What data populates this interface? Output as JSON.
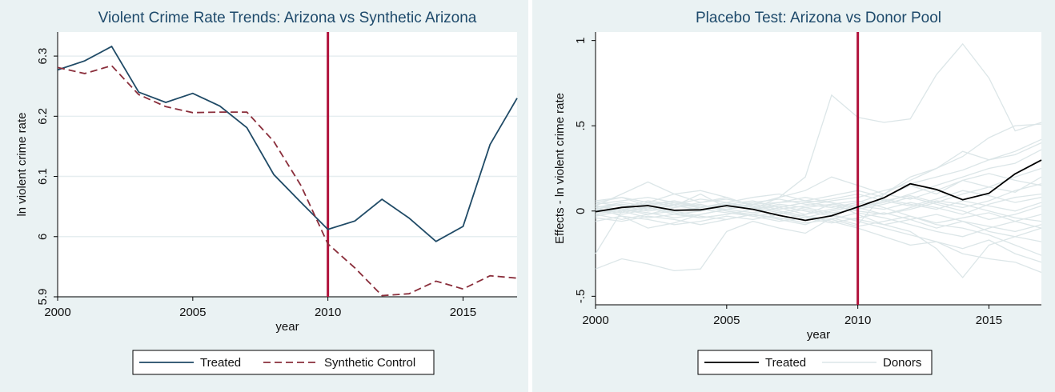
{
  "chart_data": [
    {
      "type": "line",
      "title": "Violent Crime Rate Trends: Arizona vs Synthetic Arizona",
      "xlabel": "year",
      "ylabel": "ln violent crime rate",
      "xlim": [
        2000,
        2017
      ],
      "ylim": [
        5.9,
        6.34
      ],
      "x_ticks": [
        "2000",
        "2005",
        "2010",
        "2015"
      ],
      "y_ticks": [
        "5.9",
        "6",
        "6.1",
        "6.2",
        "6.3"
      ],
      "grid": true,
      "legend_position": "bottom",
      "vline": {
        "x": 2010,
        "color": "#b0123b"
      },
      "x": [
        2000,
        2001,
        2002,
        2003,
        2004,
        2005,
        2006,
        2007,
        2008,
        2009,
        2010,
        2011,
        2012,
        2013,
        2014,
        2015,
        2016,
        2017
      ],
      "series": [
        {
          "name": "Treated",
          "color": "#1f4a66",
          "dash": "solid",
          "values": [
            6.277,
            6.292,
            6.316,
            6.24,
            6.223,
            6.238,
            6.217,
            6.181,
            6.103,
            6.057,
            6.012,
            6.026,
            6.062,
            6.031,
            5.992,
            6.017,
            6.153,
            6.23
          ]
        },
        {
          "name": "Synthetic Control",
          "color": "#8a2e3b",
          "dash": "dashed",
          "values": [
            6.281,
            6.271,
            6.284,
            6.236,
            6.216,
            6.206,
            6.207,
            6.207,
            6.158,
            6.085,
            5.988,
            5.948,
            5.902,
            5.905,
            5.926,
            5.913,
            5.935,
            5.931
          ]
        }
      ]
    },
    {
      "type": "line",
      "title": "Placebo Test: Arizona vs Donor Pool",
      "xlabel": "year",
      "ylabel": "Effects - ln violent crime rate",
      "xlim": [
        2000,
        2017
      ],
      "ylim": [
        -0.55,
        1.05
      ],
      "x_ticks": [
        "2000",
        "2005",
        "2010",
        "2015"
      ],
      "y_ticks": [
        "-.5",
        "0",
        ".5",
        "1"
      ],
      "grid": false,
      "legend_position": "bottom",
      "vline": {
        "x": 2010,
        "color": "#b0123b"
      },
      "x": [
        2000,
        2001,
        2002,
        2003,
        2004,
        2005,
        2006,
        2007,
        2008,
        2009,
        2010,
        2011,
        2012,
        2013,
        2014,
        2015,
        2016,
        2017
      ],
      "series": [
        {
          "name": "Treated",
          "color": "#000000",
          "values": [
            -0.004,
            0.021,
            0.032,
            0.004,
            0.007,
            0.032,
            0.01,
            -0.026,
            -0.055,
            -0.028,
            0.024,
            0.078,
            0.16,
            0.126,
            0.066,
            0.104,
            0.218,
            0.299
          ]
        },
        {
          "name": "Donors",
          "color": "#dce6e8",
          "values_list": [
            [
              0.05,
              0.08,
              0.03,
              0.06,
              0.02,
              0.04,
              0.01,
              0.08,
              0.2,
              0.68,
              0.55,
              0.52,
              0.54,
              0.8,
              0.98,
              0.78,
              0.47,
              0.52
            ],
            [
              -0.34,
              -0.28,
              -0.31,
              -0.35,
              -0.34,
              -0.12,
              -0.06,
              -0.1,
              -0.13,
              -0.04,
              -0.08,
              0.1,
              0.2,
              0.25,
              0.32,
              0.43,
              0.5,
              0.51
            ],
            [
              -0.25,
              0.0,
              0.05,
              0.03,
              0.1,
              0.02,
              0.04,
              0.08,
              0.12,
              0.2,
              0.15,
              0.1,
              0.18,
              0.25,
              0.35,
              0.3,
              0.35,
              0.42
            ],
            [
              0.03,
              0.1,
              0.17,
              0.1,
              0.05,
              0.08,
              0.03,
              -0.05,
              -0.08,
              -0.02,
              0.02,
              0.05,
              0.1,
              0.15,
              0.2,
              0.25,
              0.28,
              0.36
            ],
            [
              0.02,
              -0.03,
              -0.1,
              -0.07,
              -0.02,
              0.01,
              0.04,
              0.05,
              0.06,
              0.05,
              -0.02,
              -0.08,
              -0.12,
              -0.22,
              -0.39,
              -0.2,
              -0.15,
              -0.1
            ],
            [
              0.06,
              0.08,
              0.05,
              0.1,
              0.12,
              0.08,
              0.03,
              0.0,
              -0.03,
              -0.06,
              -0.1,
              -0.15,
              -0.2,
              -0.18,
              -0.25,
              -0.28,
              -0.3,
              -0.36
            ],
            [
              0.0,
              0.02,
              0.06,
              0.04,
              0.02,
              0.04,
              0.06,
              0.02,
              -0.02,
              0.04,
              0.06,
              0.02,
              -0.03,
              -0.08,
              -0.1,
              -0.14,
              -0.2,
              -0.26
            ],
            [
              0.03,
              0.0,
              -0.04,
              -0.02,
              0.0,
              0.03,
              0.05,
              0.07,
              0.04,
              0.02,
              0.05,
              0.1,
              0.07,
              0.12,
              0.18,
              0.14,
              0.2,
              0.25
            ],
            [
              -0.02,
              -0.05,
              -0.02,
              0.02,
              0.04,
              0.0,
              -0.03,
              -0.06,
              -0.04,
              0.0,
              0.03,
              0.01,
              0.05,
              0.02,
              -0.02,
              0.04,
              0.08,
              0.1
            ],
            [
              0.01,
              0.04,
              0.02,
              -0.02,
              -0.04,
              -0.02,
              0.01,
              0.03,
              0.0,
              -0.03,
              -0.05,
              -0.08,
              -0.05,
              -0.1,
              -0.06,
              -0.12,
              -0.15,
              -0.18
            ],
            [
              0.04,
              0.06,
              0.08,
              0.05,
              0.02,
              0.05,
              0.08,
              0.1,
              0.06,
              0.09,
              0.12,
              0.08,
              0.15,
              0.1,
              0.18,
              0.22,
              0.18,
              0.15
            ],
            [
              -0.04,
              -0.06,
              -0.03,
              -0.05,
              -0.08,
              -0.05,
              -0.02,
              -0.04,
              -0.07,
              -0.05,
              -0.01,
              -0.04,
              -0.08,
              -0.12,
              -0.15,
              -0.1,
              -0.06,
              -0.02
            ],
            [
              0.0,
              -0.02,
              0.01,
              0.03,
              0.01,
              -0.01,
              -0.03,
              -0.01,
              0.02,
              0.04,
              0.02,
              0.06,
              0.03,
              0.07,
              0.12,
              0.09,
              0.05,
              0.08
            ],
            [
              0.05,
              0.03,
              0.0,
              0.02,
              0.05,
              0.07,
              0.04,
              0.01,
              0.03,
              0.06,
              0.08,
              0.12,
              0.16,
              0.2,
              0.24,
              0.3,
              0.33,
              0.4
            ],
            [
              -0.06,
              -0.03,
              -0.05,
              -0.08,
              -0.06,
              -0.03,
              -0.05,
              -0.02,
              0.01,
              -0.02,
              -0.06,
              -0.1,
              -0.14,
              -0.18,
              -0.22,
              -0.17,
              -0.25,
              -0.3
            ],
            [
              0.02,
              0.05,
              0.03,
              0.0,
              -0.03,
              -0.05,
              -0.02,
              0.02,
              0.05,
              0.03,
              0.0,
              -0.02,
              0.02,
              0.06,
              0.04,
              0.0,
              -0.04,
              -0.06
            ],
            [
              -0.01,
              0.01,
              0.04,
              0.06,
              0.03,
              0.01,
              -0.01,
              0.02,
              0.05,
              0.07,
              0.1,
              0.06,
              0.09,
              0.05,
              0.02,
              0.06,
              0.12,
              0.16
            ],
            [
              0.03,
              0.01,
              -0.02,
              0.0,
              0.02,
              0.04,
              0.02,
              -0.01,
              -0.04,
              -0.07,
              -0.04,
              -0.01,
              -0.05,
              -0.02,
              -0.06,
              -0.09,
              -0.12,
              -0.08
            ],
            [
              -0.03,
              0.0,
              0.02,
              -0.01,
              -0.04,
              -0.02,
              0.01,
              0.04,
              0.02,
              -0.01,
              0.01,
              0.04,
              0.08,
              0.04,
              0.0,
              -0.05,
              -0.02,
              0.03
            ],
            [
              0.02,
              0.04,
              0.01,
              0.04,
              0.07,
              0.05,
              0.02,
              0.05,
              0.08,
              0.05,
              0.02,
              -0.02,
              0.01,
              0.05,
              0.1,
              0.14,
              0.11,
              0.2
            ],
            [
              -0.02,
              0.01,
              -0.01,
              -0.04,
              -0.02,
              0.01,
              0.03,
              0.0,
              -0.03,
              -0.05,
              -0.09,
              -0.06,
              -0.03,
              -0.07,
              -0.04,
              -0.01,
              -0.06,
              -0.1
            ],
            [
              0.01,
              -0.01,
              0.02,
              0.05,
              0.03,
              0.0,
              -0.02,
              -0.05,
              -0.02,
              0.01,
              0.04,
              0.07,
              0.04,
              0.01,
              0.06,
              0.03,
              0.0,
              0.05
            ]
          ]
        }
      ]
    }
  ]
}
